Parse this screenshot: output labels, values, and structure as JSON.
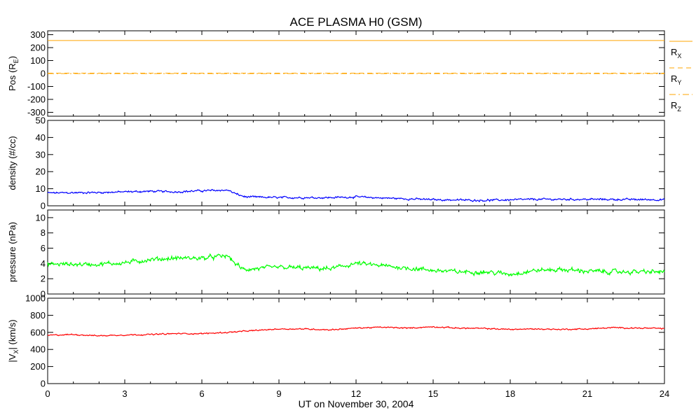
{
  "chart_data": {
    "title": "ACE PLASMA H0 (GSM)",
    "xlabel": "UT on November 30, 2004",
    "x_ticks": [
      "0",
      "3",
      "6",
      "9",
      "12",
      "15",
      "18",
      "21",
      "24"
    ],
    "xlim": [
      0,
      24
    ],
    "panels": [
      {
        "id": "position",
        "type": "line",
        "ylabel_parts": [
          "Pos (R",
          "E",
          ")"
        ],
        "ylim": [
          -330,
          330
        ],
        "y_ticks": [
          300,
          200,
          100,
          0,
          -100,
          -200,
          -300
        ],
        "y_tick_labels": [
          "300",
          "200",
          "100",
          "0",
          "-100",
          "-200",
          "-300"
        ],
        "series": [
          {
            "name": "R_X",
            "label_main": "R",
            "label_sub": "X",
            "color": "#ffa500",
            "dash": "solid",
            "value": 255
          },
          {
            "name": "R_Y",
            "label_main": "R",
            "label_sub": "Y",
            "color": "#ffa500",
            "dash": "dashed",
            "value": 3
          },
          {
            "name": "R_Z",
            "label_main": "R",
            "label_sub": "Z",
            "color": "#ffa500",
            "dash": "dashdot",
            "value": -1
          }
        ]
      },
      {
        "id": "density",
        "type": "line",
        "ylabel_parts": [
          "density (#/cc)"
        ],
        "ylim": [
          0,
          50
        ],
        "y_ticks": [
          50,
          40,
          30,
          20,
          10,
          0
        ],
        "y_tick_labels": [
          "50",
          "40",
          "30",
          "20",
          "10",
          "0"
        ],
        "color": "#0000ff",
        "trend": [
          [
            0,
            7.5
          ],
          [
            2,
            7.8
          ],
          [
            4,
            8.5
          ],
          [
            5,
            8.2
          ],
          [
            6,
            8.8
          ],
          [
            7,
            9.2
          ],
          [
            7.4,
            6.5
          ],
          [
            7.7,
            5.2
          ],
          [
            9,
            4.8
          ],
          [
            11,
            4.8
          ],
          [
            12,
            5.2
          ],
          [
            13,
            4.6
          ],
          [
            15,
            3.6
          ],
          [
            17,
            3.2
          ],
          [
            19,
            3.8
          ],
          [
            21,
            3.8
          ],
          [
            24,
            3.6
          ]
        ],
        "noise": 0.7
      },
      {
        "id": "pressure",
        "type": "line",
        "ylabel_parts": [
          "pressure (nPa)"
        ],
        "ylim": [
          0,
          11
        ],
        "y_ticks": [
          10,
          8,
          6,
          4,
          2,
          0
        ],
        "y_tick_labels": [
          "10",
          "8",
          "6",
          "4",
          "2",
          "0"
        ],
        "color": "#00ff00",
        "trend": [
          [
            0,
            3.9
          ],
          [
            2,
            3.9
          ],
          [
            3,
            4.1
          ],
          [
            4,
            4.5
          ],
          [
            5,
            4.7
          ],
          [
            6,
            4.7
          ],
          [
            7,
            5.0
          ],
          [
            7.3,
            4.0
          ],
          [
            7.6,
            3.2
          ],
          [
            9,
            3.5
          ],
          [
            11,
            3.3
          ],
          [
            12,
            4.0
          ],
          [
            13,
            3.7
          ],
          [
            14,
            3.4
          ],
          [
            15,
            3.1
          ],
          [
            16,
            2.9
          ],
          [
            17,
            2.9
          ],
          [
            18,
            2.6
          ],
          [
            19,
            3.1
          ],
          [
            20,
            3.2
          ],
          [
            21,
            3.0
          ],
          [
            22,
            2.9
          ],
          [
            24,
            2.9
          ]
        ],
        "noise": 0.35
      },
      {
        "id": "velocity",
        "type": "line",
        "ylabel_parts": [
          "|V",
          "X",
          "| (km/s)"
        ],
        "ylim": [
          0,
          1000
        ],
        "y_ticks": [
          1000,
          800,
          600,
          400,
          200,
          0
        ],
        "y_tick_labels": [
          "1000",
          "800",
          "600",
          "400",
          "200",
          "0"
        ],
        "color": "#ff0000",
        "trend": [
          [
            0,
            565
          ],
          [
            1,
            575
          ],
          [
            2,
            560
          ],
          [
            3,
            570
          ],
          [
            4,
            575
          ],
          [
            5,
            585
          ],
          [
            6,
            585
          ],
          [
            7,
            600
          ],
          [
            8,
            620
          ],
          [
            9,
            640
          ],
          [
            10,
            640
          ],
          [
            11,
            630
          ],
          [
            12,
            650
          ],
          [
            13,
            660
          ],
          [
            14,
            650
          ],
          [
            15,
            665
          ],
          [
            16,
            650
          ],
          [
            17,
            645
          ],
          [
            18,
            635
          ],
          [
            19,
            640
          ],
          [
            20,
            635
          ],
          [
            21,
            640
          ],
          [
            22,
            655
          ],
          [
            23,
            650
          ],
          [
            24,
            645
          ]
        ],
        "noise": 9
      }
    ]
  }
}
